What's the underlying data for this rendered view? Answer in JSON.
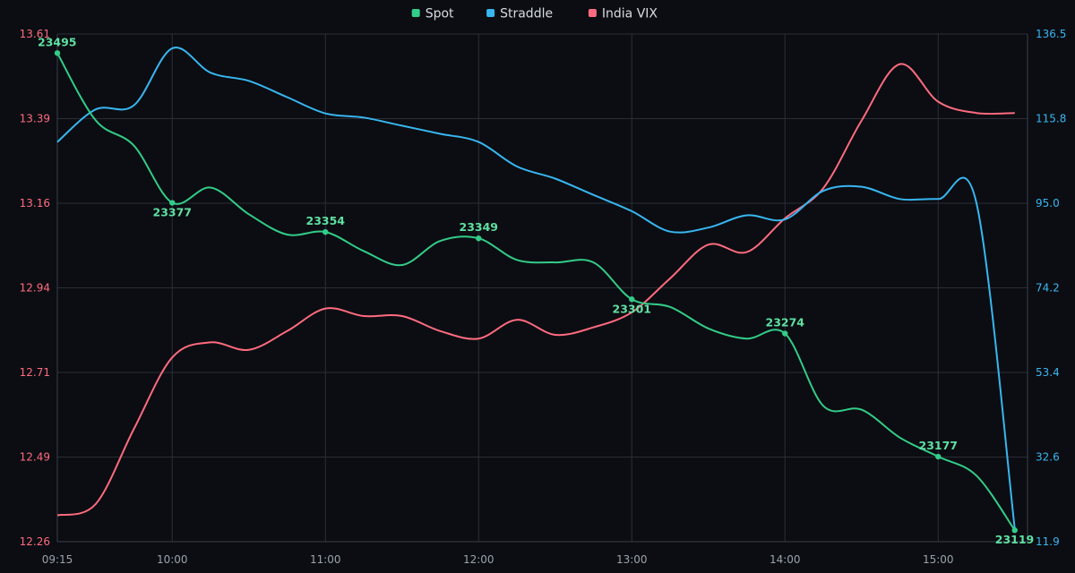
{
  "chart_data": {
    "type": "line",
    "x": [
      "09:15",
      "09:30",
      "09:45",
      "10:00",
      "10:15",
      "10:30",
      "10:45",
      "11:00",
      "11:15",
      "11:30",
      "11:45",
      "12:00",
      "12:15",
      "12:30",
      "12:45",
      "13:00",
      "13:15",
      "13:30",
      "13:45",
      "14:00",
      "14:15",
      "14:30",
      "14:45",
      "15:00",
      "15:15",
      "15:30"
    ],
    "xtick_labels": [
      "09:15",
      "10:00",
      "11:00",
      "12:00",
      "13:00",
      "14:00",
      "15:00"
    ],
    "legend_position": "top-center",
    "grid": true,
    "y_left": {
      "series": "India VIX",
      "ylim": [
        12.26,
        13.61
      ],
      "ticks": [
        "12.26",
        "12.49",
        "12.71",
        "12.94",
        "13.16",
        "13.39",
        "13.61"
      ]
    },
    "y_right": {
      "series": "Straddle",
      "ylim": [
        11.9,
        136.5
      ],
      "ticks": [
        "11.9",
        "32.6",
        "53.4",
        "74.2",
        "95.0",
        "115.8",
        "136.5"
      ]
    },
    "spot_ylim": [
      23110,
      23510
    ],
    "series": [
      {
        "name": "Spot",
        "color": "#33cc88",
        "axis": "hidden",
        "values": [
          23495,
          23442,
          23422,
          23377,
          23389,
          23368,
          23352,
          23354,
          23339,
          23328,
          23347,
          23349,
          23332,
          23330,
          23330,
          23301,
          23295,
          23278,
          23270,
          23274,
          23217,
          23214,
          23192,
          23177,
          23162,
          23119
        ],
        "labeled_points": [
          {
            "index": 0,
            "label": "23495"
          },
          {
            "index": 3,
            "label": "23377"
          },
          {
            "index": 7,
            "label": "23354"
          },
          {
            "index": 11,
            "label": "23349"
          },
          {
            "index": 15,
            "label": "23301"
          },
          {
            "index": 19,
            "label": "23274"
          },
          {
            "index": 23,
            "label": "23177"
          },
          {
            "index": 25,
            "label": "23119"
          }
        ]
      },
      {
        "name": "Straddle",
        "color": "#38b6f0",
        "axis": "right",
        "values": [
          110,
          118,
          119,
          133,
          127,
          125,
          121,
          117,
          116,
          114,
          112,
          110,
          104,
          101,
          97,
          93,
          88,
          89,
          92,
          91,
          98,
          99,
          96,
          96,
          95,
          15
        ],
        "labeled_points": []
      },
      {
        "name": "India VIX",
        "color": "#ff6b7f",
        "axis": "left",
        "values": [
          12.33,
          12.36,
          12.56,
          12.75,
          12.79,
          12.77,
          12.82,
          12.88,
          12.86,
          12.86,
          12.82,
          12.8,
          12.85,
          12.81,
          12.83,
          12.87,
          12.96,
          13.05,
          13.03,
          13.12,
          13.2,
          13.38,
          13.53,
          13.43,
          13.4,
          13.4
        ],
        "labeled_points": []
      }
    ]
  }
}
